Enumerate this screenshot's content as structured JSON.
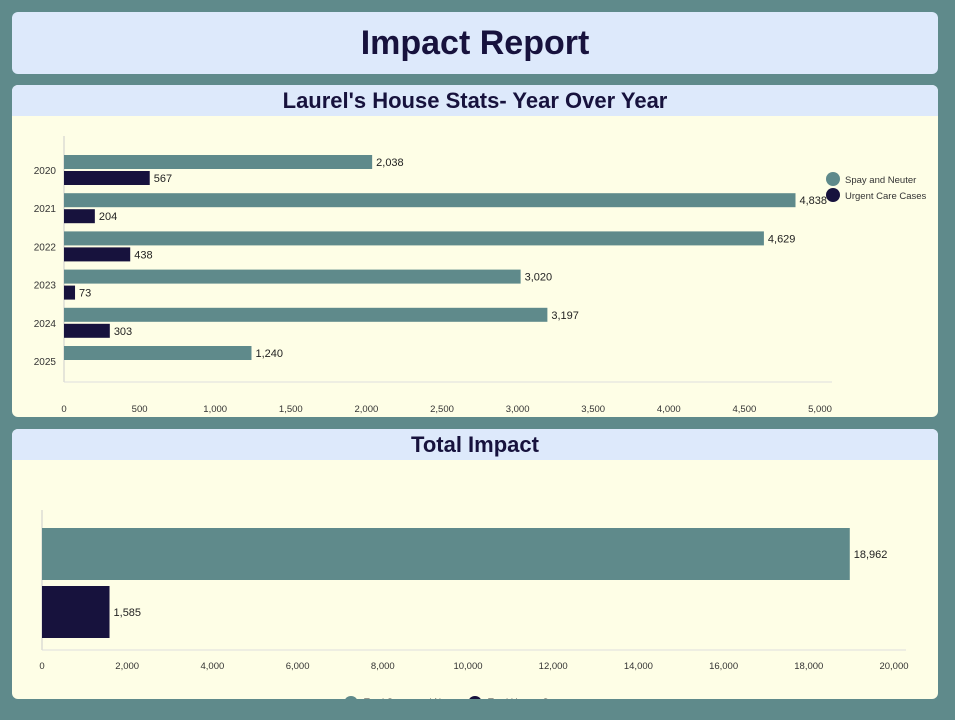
{
  "page": {
    "title": "Impact Report"
  },
  "colors": {
    "spay": "#5f8a8b",
    "urgent": "#17123d"
  },
  "chart_data": [
    {
      "type": "bar",
      "orientation": "horizontal",
      "title": "Laurel's House Stats- Year Over Year",
      "categories": [
        "2020",
        "2021",
        "2022",
        "2023",
        "2024",
        "2025"
      ],
      "series": [
        {
          "name": "Spay and Neuter",
          "values": [
            2038,
            4838,
            4629,
            3020,
            3197,
            1240
          ]
        },
        {
          "name": "Urgent Care Cases",
          "values": [
            567,
            204,
            438,
            73,
            303,
            null
          ]
        }
      ],
      "xlim": [
        0,
        5000
      ],
      "xticks": [
        0,
        500,
        1000,
        1500,
        2000,
        2500,
        3000,
        3500,
        4000,
        4500,
        5000
      ],
      "legend": "top-right",
      "grid": false
    },
    {
      "type": "bar",
      "orientation": "horizontal",
      "title": "Total Impact",
      "series": [
        {
          "name": "Total Spays and Neuter",
          "values": [
            18962
          ]
        },
        {
          "name": "Total Urgent Care",
          "values": [
            1585
          ]
        }
      ],
      "xlim": [
        0,
        20000
      ],
      "xticks": [
        0,
        2000,
        4000,
        6000,
        8000,
        10000,
        12000,
        14000,
        16000,
        18000,
        20000
      ],
      "legend": "bottom-center",
      "grid": false
    }
  ]
}
